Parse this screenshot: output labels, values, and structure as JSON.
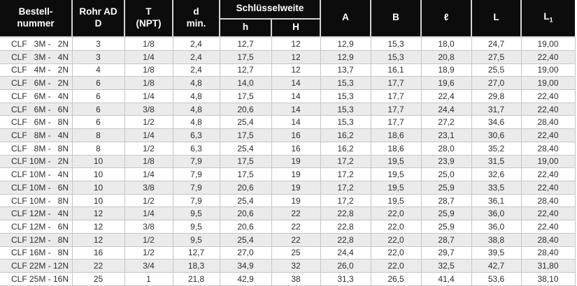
{
  "table": {
    "headers": {
      "bestellnummer": "Bestell-\nnummer",
      "rohr_ad": "Rohr AD\nD",
      "t_npt": "T\n(NPT)",
      "d_min": "d\nmin.",
      "schluesselweite": "Schlüsselweite",
      "h": "h",
      "H": "H",
      "A": "A",
      "B": "B",
      "l_script": "ℓ",
      "L": "L",
      "L1_base": "L",
      "L1_sub": "1"
    },
    "rows": [
      [
        "CLF   3M -   2N",
        "3",
        "1/8",
        "2,4",
        "12,7",
        "12",
        "12,9",
        "15,3",
        "18,0",
        "24,7",
        "19,00"
      ],
      [
        "CLF   3M -   4N",
        "3",
        "1/4",
        "2,4",
        "17,5",
        "12",
        "12,9",
        "15,3",
        "20,8",
        "27,5",
        "22,40"
      ],
      [
        "CLF   4M -   2N",
        "4",
        "1/8",
        "2,4",
        "12,7",
        "12",
        "13,7",
        "16,1",
        "18,9",
        "25,5",
        "19,00"
      ],
      [
        "CLF   6M -   2N",
        "6",
        "1/8",
        "4,8",
        "14,0",
        "14",
        "15,3",
        "17,7",
        "19,6",
        "27,0",
        "19,00"
      ],
      [
        "CLF   6M -   4N",
        "6",
        "1/4",
        "4,8",
        "17,5",
        "14",
        "15,3",
        "17,7",
        "22,4",
        "29,8",
        "22,40"
      ],
      [
        "CLF   6M -   6N",
        "6",
        "3/8",
        "4,8",
        "20,6",
        "14",
        "15,3",
        "17,7",
        "24,4",
        "31,7",
        "22,40"
      ],
      [
        "CLF   6M -   8N",
        "6",
        "1/2",
        "4,8",
        "25,4",
        "14",
        "15,3",
        "17,7",
        "27,2",
        "34,6",
        "28,40"
      ],
      [
        "CLF   8M -   4N",
        "8",
        "1/4",
        "6,3",
        "17,5",
        "16",
        "16,2",
        "18,6",
        "23,1",
        "30,6",
        "22,40"
      ],
      [
        "CLF   8M -   8N",
        "8",
        "1/2",
        "6,3",
        "25,4",
        "16",
        "16,2",
        "18,6",
        "28,0",
        "35,2",
        "28,40"
      ],
      [
        "CLF 10M -   2N",
        "10",
        "1/8",
        "7,9",
        "17,5",
        "19",
        "17,2",
        "19,5",
        "23,9",
        "31,5",
        "19,00"
      ],
      [
        "CLF 10M -   4N",
        "10",
        "1/4",
        "7,9",
        "17,5",
        "19",
        "17,2",
        "19,5",
        "25,0",
        "32,6",
        "22,40"
      ],
      [
        "CLF 10M -   6N",
        "10",
        "3/8",
        "7,9",
        "20,6",
        "19",
        "17,2",
        "19,5",
        "25,9",
        "33,5",
        "22,40"
      ],
      [
        "CLF 10M -   8N",
        "10",
        "1/2",
        "7,9",
        "25,4",
        "19",
        "17,2",
        "19,5",
        "28,7",
        "36,1",
        "28,40"
      ],
      [
        "CLF 12M -   4N",
        "12",
        "1/4",
        "9,5",
        "20,6",
        "22",
        "22,8",
        "22,0",
        "25,9",
        "36,0",
        "22,40"
      ],
      [
        "CLF 12M -   6N",
        "12",
        "3/8",
        "9,5",
        "20,6",
        "22",
        "22,8",
        "22,0",
        "25,9",
        "36,0",
        "22,40"
      ],
      [
        "CLF 12M -   8N",
        "12",
        "1/2",
        "9,5",
        "25,4",
        "22",
        "22,8",
        "22,0",
        "28,7",
        "38,8",
        "28,40"
      ],
      [
        "CLF 16M -   8N",
        "16",
        "1/2",
        "12,7",
        "27,0",
        "25",
        "24,4",
        "22,0",
        "29,7",
        "39,5",
        "28,40"
      ],
      [
        "CLF 22M - 12N",
        "22",
        "3/4",
        "18,3",
        "34,9",
        "32",
        "26,0",
        "22,0",
        "32,5",
        "42,7",
        "31,80"
      ],
      [
        "CLF 25M - 16N",
        "25",
        "1",
        "21,8",
        "42,9",
        "38",
        "31,3",
        "26,5",
        "41,4",
        "53,6",
        "38,10"
      ]
    ]
  },
  "colors": {
    "header_bg": "#0c0c0c",
    "header_text": "#ffffff",
    "row_stripe": "#ebebeb",
    "grid_line": "#c6c6c6",
    "body_text": "#2e2e2e"
  }
}
